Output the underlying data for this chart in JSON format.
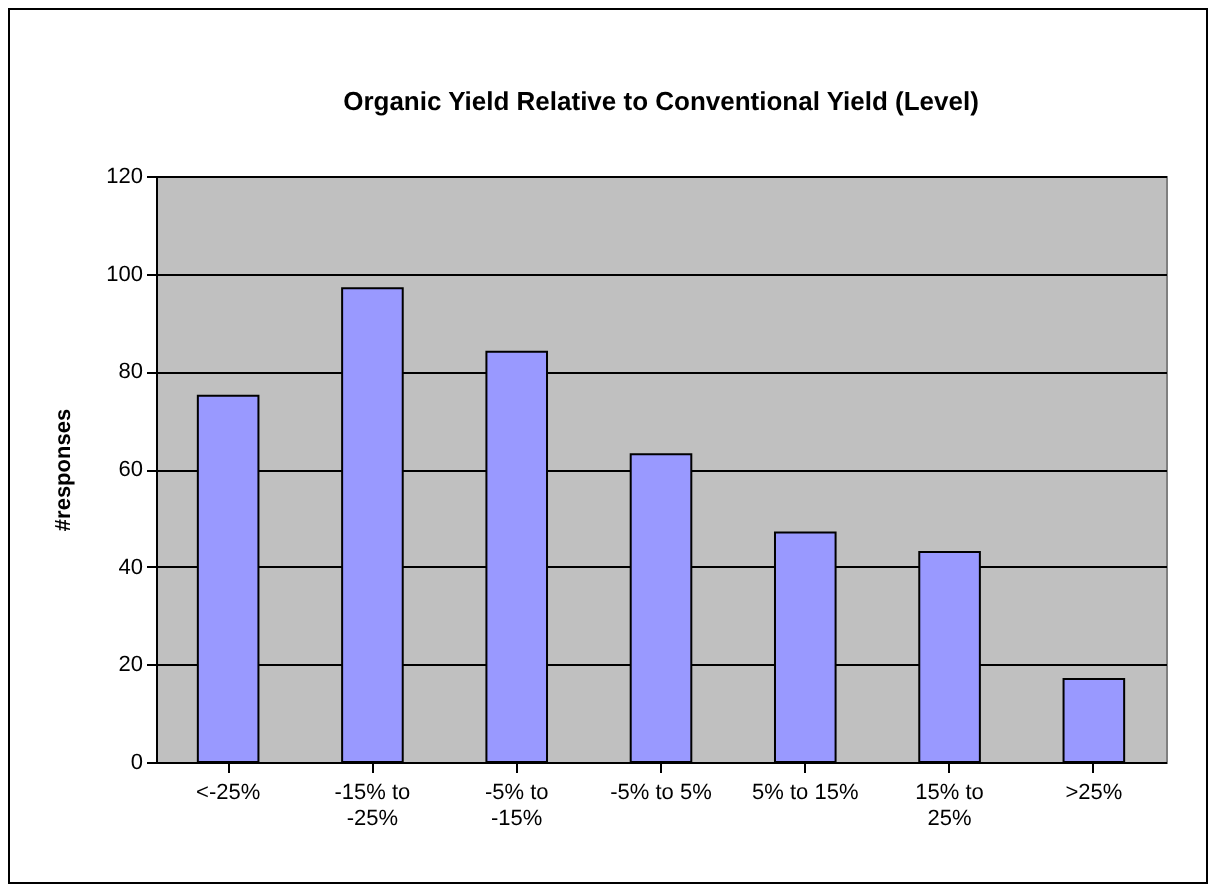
{
  "chart_data": {
    "type": "bar",
    "title": "Organic Yield Relative to Conventional Yield (Level)",
    "ylabel": "#responses",
    "categories": [
      "<-25%",
      "-15% to -25%",
      "-5% to -15%",
      "-5% to 5%",
      "5% to 15%",
      "15% to 25%",
      ">25%"
    ],
    "values": [
      75,
      97,
      84,
      63,
      47,
      43,
      17
    ],
    "color": "#9999ff",
    "ylim": [
      0,
      120
    ],
    "yticks": [
      0,
      20,
      40,
      60,
      80,
      100,
      120
    ],
    "grid": "y"
  }
}
